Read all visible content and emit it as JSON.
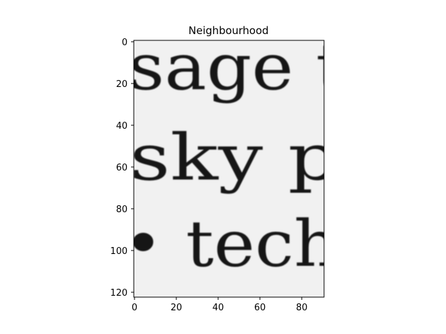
{
  "figure": {
    "title": "Neighbourhood",
    "axes": {
      "x_ticks": [
        "0",
        "20",
        "40",
        "60",
        "80"
      ],
      "y_ticks": [
        "0",
        "20",
        "40",
        "60",
        "80",
        "100",
        "120"
      ]
    },
    "image": {
      "lines": [
        "sage t",
        "sky p",
        "• tech"
      ],
      "colormap": "gray",
      "background_color": "#f1f1f1",
      "ink_color": "#141414"
    }
  }
}
